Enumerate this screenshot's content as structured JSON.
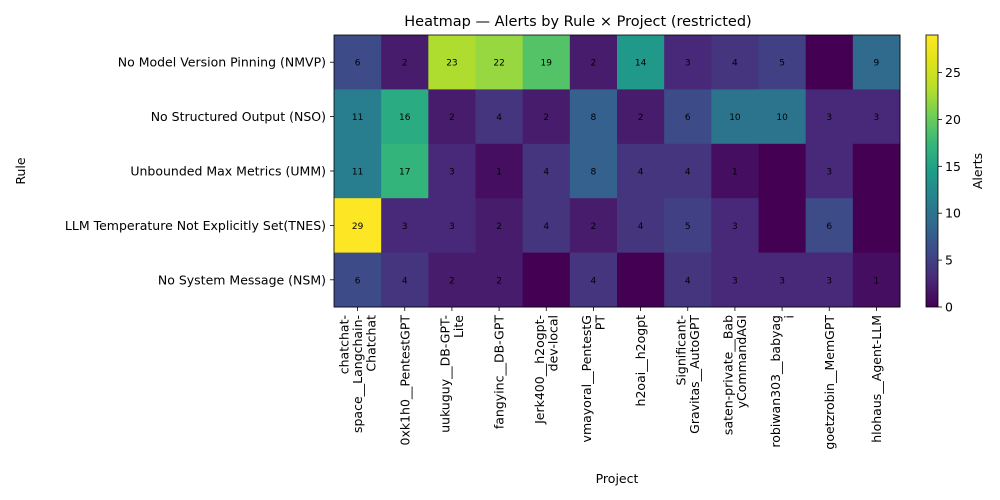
{
  "chart_data": {
    "type": "heatmap",
    "title": "Heatmap — Alerts by Rule × Project (restricted)",
    "xlabel": "Project",
    "ylabel": "Rule",
    "rows": [
      "No Model Version Pinning (NMVP)",
      "No Structured Output (NSO)",
      "Unbounded Max Metrics (UMM)",
      "LLM Temperature Not Explicitly Set(TNES)",
      "No System Message (NSM)"
    ],
    "columns": [
      [
        "chatchat-",
        "space__Langchain-",
        "Chatchat"
      ],
      [
        "0xk1h0__PentestGPT"
      ],
      [
        "uukuguy__DB-GPT-",
        "Lite"
      ],
      [
        "fangyinc__DB-GPT"
      ],
      [
        "Jerk400__h2ogpt-",
        "dev-local"
      ],
      [
        "vmayoral__PentestG",
        "PT"
      ],
      [
        "h2oai__h2ogpt"
      ],
      [
        "Significant-",
        "Gravitas__AutoGPT"
      ],
      [
        "saten-private__Bab",
        "yCommandAGI"
      ],
      [
        "robiwan303__babyag",
        "i"
      ],
      [
        "goetzrobin__MemGPT"
      ],
      [
        "hlohaus__Agent-LLM"
      ]
    ],
    "values": [
      [
        6,
        2,
        23,
        22,
        19,
        2,
        14,
        3,
        4,
        5,
        0,
        9
      ],
      [
        11,
        16,
        2,
        4,
        2,
        8,
        2,
        6,
        10,
        10,
        3,
        3
      ],
      [
        11,
        17,
        3,
        1,
        4,
        8,
        4,
        4,
        1,
        0,
        3,
        0
      ],
      [
        29,
        3,
        3,
        2,
        4,
        2,
        4,
        5,
        3,
        0,
        6,
        0
      ],
      [
        6,
        4,
        2,
        2,
        0,
        4,
        0,
        4,
        3,
        3,
        3,
        1
      ]
    ],
    "hide_zero_labels": true,
    "colormap": "viridis",
    "vmin": 0,
    "vmax": 29,
    "colorbar": {
      "label": "Alerts",
      "ticks": [
        0,
        5,
        10,
        15,
        20,
        25
      ]
    }
  }
}
